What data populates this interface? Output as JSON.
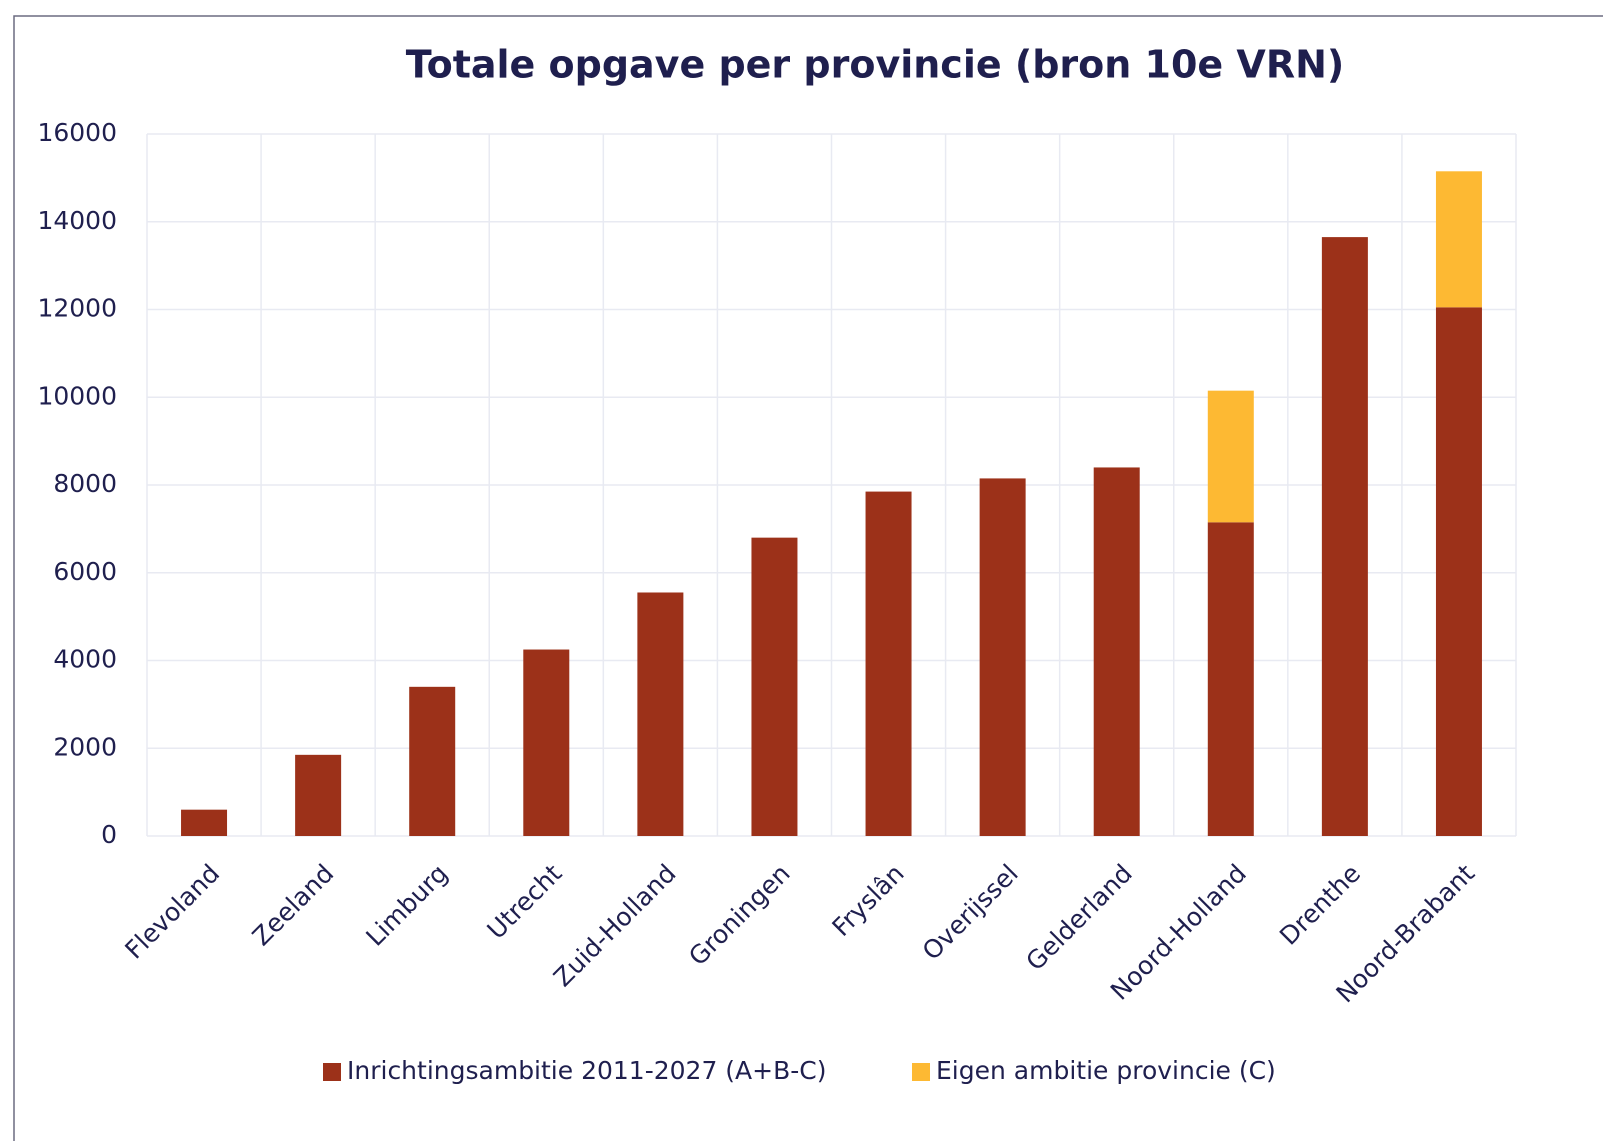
{
  "chart_data": {
    "type": "stacked_bar",
    "title": "Totale opgave per provincie (bron 10e VRN)",
    "categories": [
      "Flevoland",
      "Zeeland",
      "Limburg",
      "Utrecht",
      "Zuid-Holland",
      "Groningen",
      "Fryslân",
      "Overijssel",
      "Gelderland",
      "Noord-Holland",
      "Drenthe",
      "Noord-Brabant"
    ],
    "series": [
      {
        "name": "Inrichtingsambitie 2011-2027 (A+B-C)",
        "color": "#9c3119",
        "values": [
          600,
          1850,
          3400,
          4250,
          5550,
          6800,
          7850,
          8150,
          8400,
          7150,
          13650,
          12050
        ]
      },
      {
        "name": "Eigen ambitie provincie (C)",
        "color": "#fdb933",
        "values": [
          null,
          null,
          null,
          null,
          null,
          null,
          null,
          null,
          null,
          3000,
          null,
          3100
        ]
      }
    ],
    "ylim": [
      0,
      16000
    ],
    "yticks": [
      0,
      2000,
      4000,
      6000,
      8000,
      10000,
      12000,
      14000,
      16000
    ],
    "grid": true,
    "legend": "bottom"
  }
}
